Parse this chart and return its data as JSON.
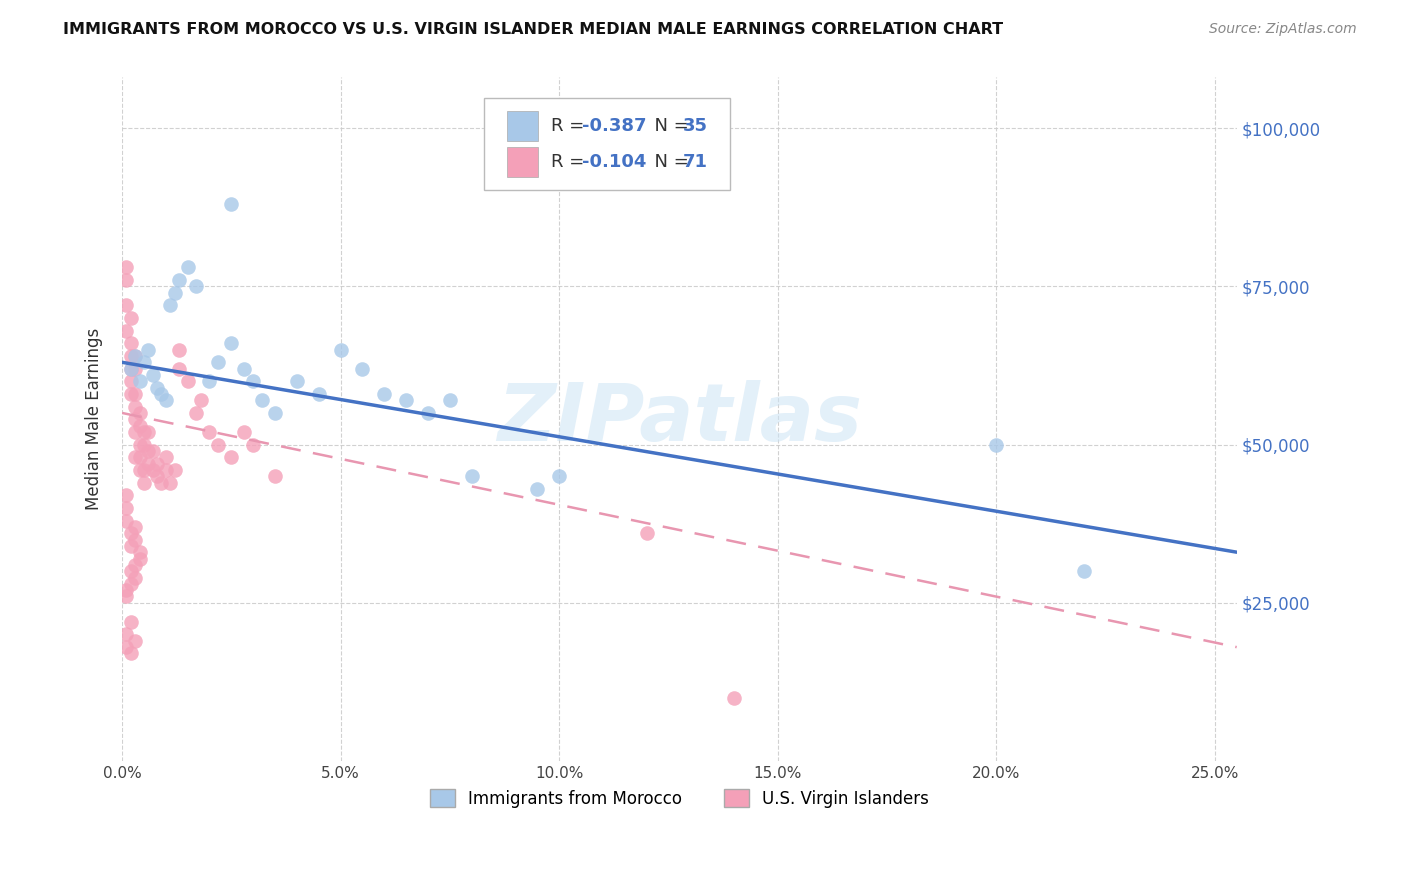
{
  "title": "IMMIGRANTS FROM MOROCCO VS U.S. VIRGIN ISLANDER MEDIAN MALE EARNINGS CORRELATION CHART",
  "source": "Source: ZipAtlas.com",
  "ylabel": "Median Male Earnings",
  "xlabel_ticks": [
    "0.0%",
    "5.0%",
    "10.0%",
    "15.0%",
    "20.0%",
    "25.0%"
  ],
  "xlabel_vals": [
    0.0,
    0.05,
    0.1,
    0.15,
    0.2,
    0.25
  ],
  "ylabel_ticks": [
    "$25,000",
    "$50,000",
    "$75,000",
    "$100,000"
  ],
  "ylabel_vals": [
    25000,
    50000,
    75000,
    100000
  ],
  "xlim": [
    0.0,
    0.255
  ],
  "ylim": [
    0,
    108000
  ],
  "blue_label": "Immigrants from Morocco",
  "pink_label": "U.S. Virgin Islanders",
  "blue_R": "-0.387",
  "blue_N": "35",
  "pink_R": "-0.104",
  "pink_N": "71",
  "blue_color": "#a8c8e8",
  "pink_color": "#f4a0b8",
  "blue_line_color": "#4472c4",
  "pink_line_color": "#e896b0",
  "watermark": "ZIPatlas",
  "background_color": "#ffffff",
  "blue_scatter_x": [
    0.002,
    0.003,
    0.004,
    0.005,
    0.006,
    0.007,
    0.008,
    0.009,
    0.01,
    0.011,
    0.012,
    0.013,
    0.015,
    0.017,
    0.02,
    0.022,
    0.025,
    0.028,
    0.03,
    0.032,
    0.035,
    0.04,
    0.045,
    0.05,
    0.055,
    0.06,
    0.065,
    0.07,
    0.075,
    0.08,
    0.095,
    0.1,
    0.2,
    0.22,
    0.025
  ],
  "blue_scatter_y": [
    62000,
    64000,
    60000,
    63000,
    65000,
    61000,
    59000,
    58000,
    57000,
    72000,
    74000,
    76000,
    78000,
    75000,
    60000,
    63000,
    66000,
    62000,
    60000,
    57000,
    55000,
    60000,
    58000,
    65000,
    62000,
    58000,
    57000,
    55000,
    57000,
    45000,
    43000,
    45000,
    50000,
    30000,
    88000
  ],
  "pink_scatter_x": [
    0.001,
    0.001,
    0.001,
    0.001,
    0.002,
    0.002,
    0.002,
    0.002,
    0.002,
    0.002,
    0.003,
    0.003,
    0.003,
    0.003,
    0.003,
    0.003,
    0.004,
    0.004,
    0.004,
    0.004,
    0.005,
    0.005,
    0.005,
    0.006,
    0.006,
    0.006,
    0.007,
    0.007,
    0.008,
    0.008,
    0.009,
    0.01,
    0.01,
    0.011,
    0.012,
    0.013,
    0.015,
    0.017,
    0.018,
    0.02,
    0.022,
    0.025,
    0.028,
    0.03,
    0.035,
    0.001,
    0.001,
    0.001,
    0.002,
    0.002,
    0.003,
    0.003,
    0.004,
    0.004,
    0.002,
    0.003,
    0.003,
    0.002,
    0.001,
    0.001,
    0.003,
    0.004,
    0.005,
    0.002,
    0.001,
    0.003,
    0.001,
    0.002,
    0.013,
    0.12,
    0.14
  ],
  "pink_scatter_y": [
    68000,
    72000,
    76000,
    78000,
    64000,
    66000,
    70000,
    58000,
    60000,
    62000,
    56000,
    58000,
    62000,
    64000,
    52000,
    54000,
    50000,
    53000,
    55000,
    48000,
    46000,
    50000,
    52000,
    47000,
    49000,
    52000,
    46000,
    49000,
    45000,
    47000,
    44000,
    46000,
    48000,
    44000,
    46000,
    65000,
    60000,
    55000,
    57000,
    52000,
    50000,
    48000,
    52000,
    50000,
    45000,
    42000,
    40000,
    38000,
    36000,
    34000,
    35000,
    37000,
    33000,
    32000,
    30000,
    31000,
    29000,
    28000,
    27000,
    26000,
    48000,
    46000,
    44000,
    22000,
    20000,
    19000,
    18000,
    17000,
    62000,
    36000,
    10000
  ],
  "blue_line_x": [
    0.0,
    0.255
  ],
  "blue_line_y": [
    63000,
    33000
  ],
  "pink_line_x": [
    0.0,
    0.255
  ],
  "pink_line_y": [
    55000,
    18000
  ]
}
